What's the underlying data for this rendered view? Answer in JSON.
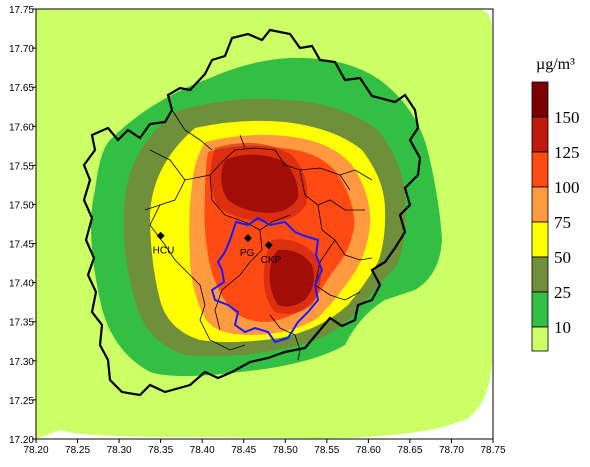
{
  "legend": {
    "unit": "µg/m³",
    "levels": [
      {
        "value": "150",
        "color": "#7b0000"
      },
      {
        "value": "125",
        "color": "#bf1a0d"
      },
      {
        "value": "100",
        "color": "#ff4a14"
      },
      {
        "value": "75",
        "color": "#ff9a40"
      },
      {
        "value": "50",
        "color": "#ffff00"
      },
      {
        "value": "25",
        "color": "#6f8f3b"
      },
      {
        "value": "10",
        "color": "#33bf44"
      }
    ],
    "lowest_color": "#ccff66"
  },
  "stations": [
    {
      "label": "HCU",
      "lon": 78.35,
      "lat": 17.46
    },
    {
      "label": "PG",
      "lon": 78.455,
      "lat": 17.457
    },
    {
      "label": "CKP",
      "lon": 78.48,
      "lat": 17.448
    }
  ],
  "chart_data": {
    "type": "heatmap",
    "title": "",
    "xlabel": "",
    "ylabel": "",
    "xlim": [
      78.2,
      78.75
    ],
    "ylim": [
      17.2,
      17.75
    ],
    "x_ticks": [
      "78.20",
      "78.25",
      "78.30",
      "78.35",
      "78.40",
      "78.45",
      "78.50",
      "78.55",
      "78.60",
      "78.65",
      "78.70",
      "78.75"
    ],
    "y_ticks": [
      "17.75",
      "17.70",
      "17.65",
      "17.60",
      "17.55",
      "17.50",
      "17.45",
      "17.40",
      "17.35",
      "17.30",
      "17.25",
      "17.20"
    ],
    "contour_levels": [
      10,
      25,
      50,
      75,
      100,
      125,
      150
    ],
    "unit": "µg/m³",
    "peaks": [
      {
        "lon": 78.455,
        "lat": 17.535,
        "approx_max": 150
      },
      {
        "lon": 78.49,
        "lat": 17.4,
        "approx_max": 150
      }
    ],
    "boundary_colors": {
      "outer_district": "#000000",
      "inner_urban": "#1a1aff"
    }
  }
}
